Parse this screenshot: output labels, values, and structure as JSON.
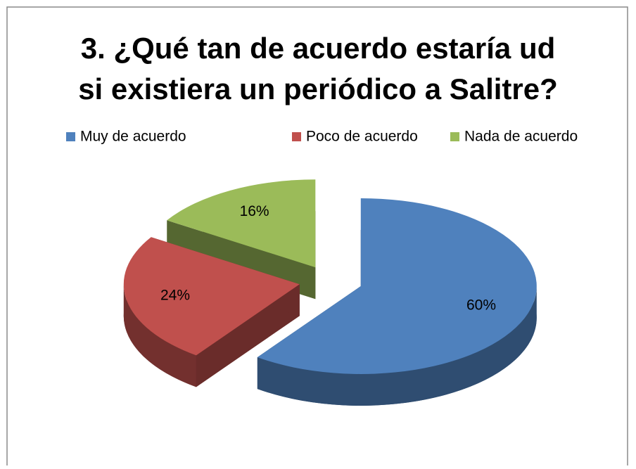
{
  "chart_data": {
    "type": "pie",
    "title": [
      "3. ¿Qué tan de acuerdo estaría ud",
      "si existiera un periódico a Salitre?"
    ],
    "categories": [
      "Muy de acuerdo",
      "Poco de acuerdo",
      "Nada de acuerdo"
    ],
    "values": [
      60,
      24,
      16
    ],
    "value_labels": [
      "60%",
      "24%",
      "16%"
    ],
    "colors": [
      "#4f81bd",
      "#c0504d",
      "#9bbb59"
    ],
    "legend": "top",
    "exploded": true,
    "three_d": true
  }
}
